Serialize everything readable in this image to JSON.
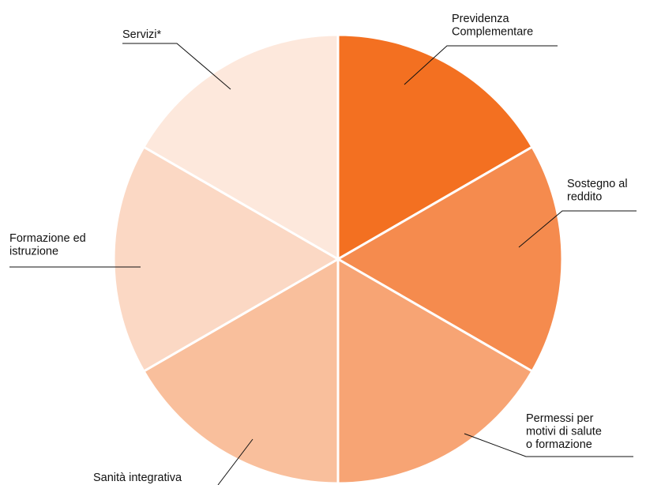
{
  "chart_data": {
    "type": "pie",
    "title": "",
    "slices": [
      {
        "label_lines": [
          "Previdenza",
          "Complementare"
        ],
        "value": 1,
        "color": "#f37021"
      },
      {
        "label_lines": [
          "Sostegno al",
          "reddito"
        ],
        "value": 1,
        "color": "#f58b4e"
      },
      {
        "label_lines": [
          "Permessi per",
          "motivi di salute",
          "o formazione"
        ],
        "value": 1,
        "color": "#f7a474"
      },
      {
        "label_lines": [
          "Sanità integrativa"
        ],
        "value": 1,
        "color": "#f9bf9c"
      },
      {
        "label_lines": [
          "Formazione ed",
          "istruzione"
        ],
        "value": 1,
        "color": "#fbd8c4"
      },
      {
        "label_lines": [
          "Servizi*"
        ],
        "value": 1,
        "color": "#fde8dc"
      }
    ],
    "legend": "none",
    "start_angle": "12 o'clock",
    "direction": "clockwise"
  }
}
